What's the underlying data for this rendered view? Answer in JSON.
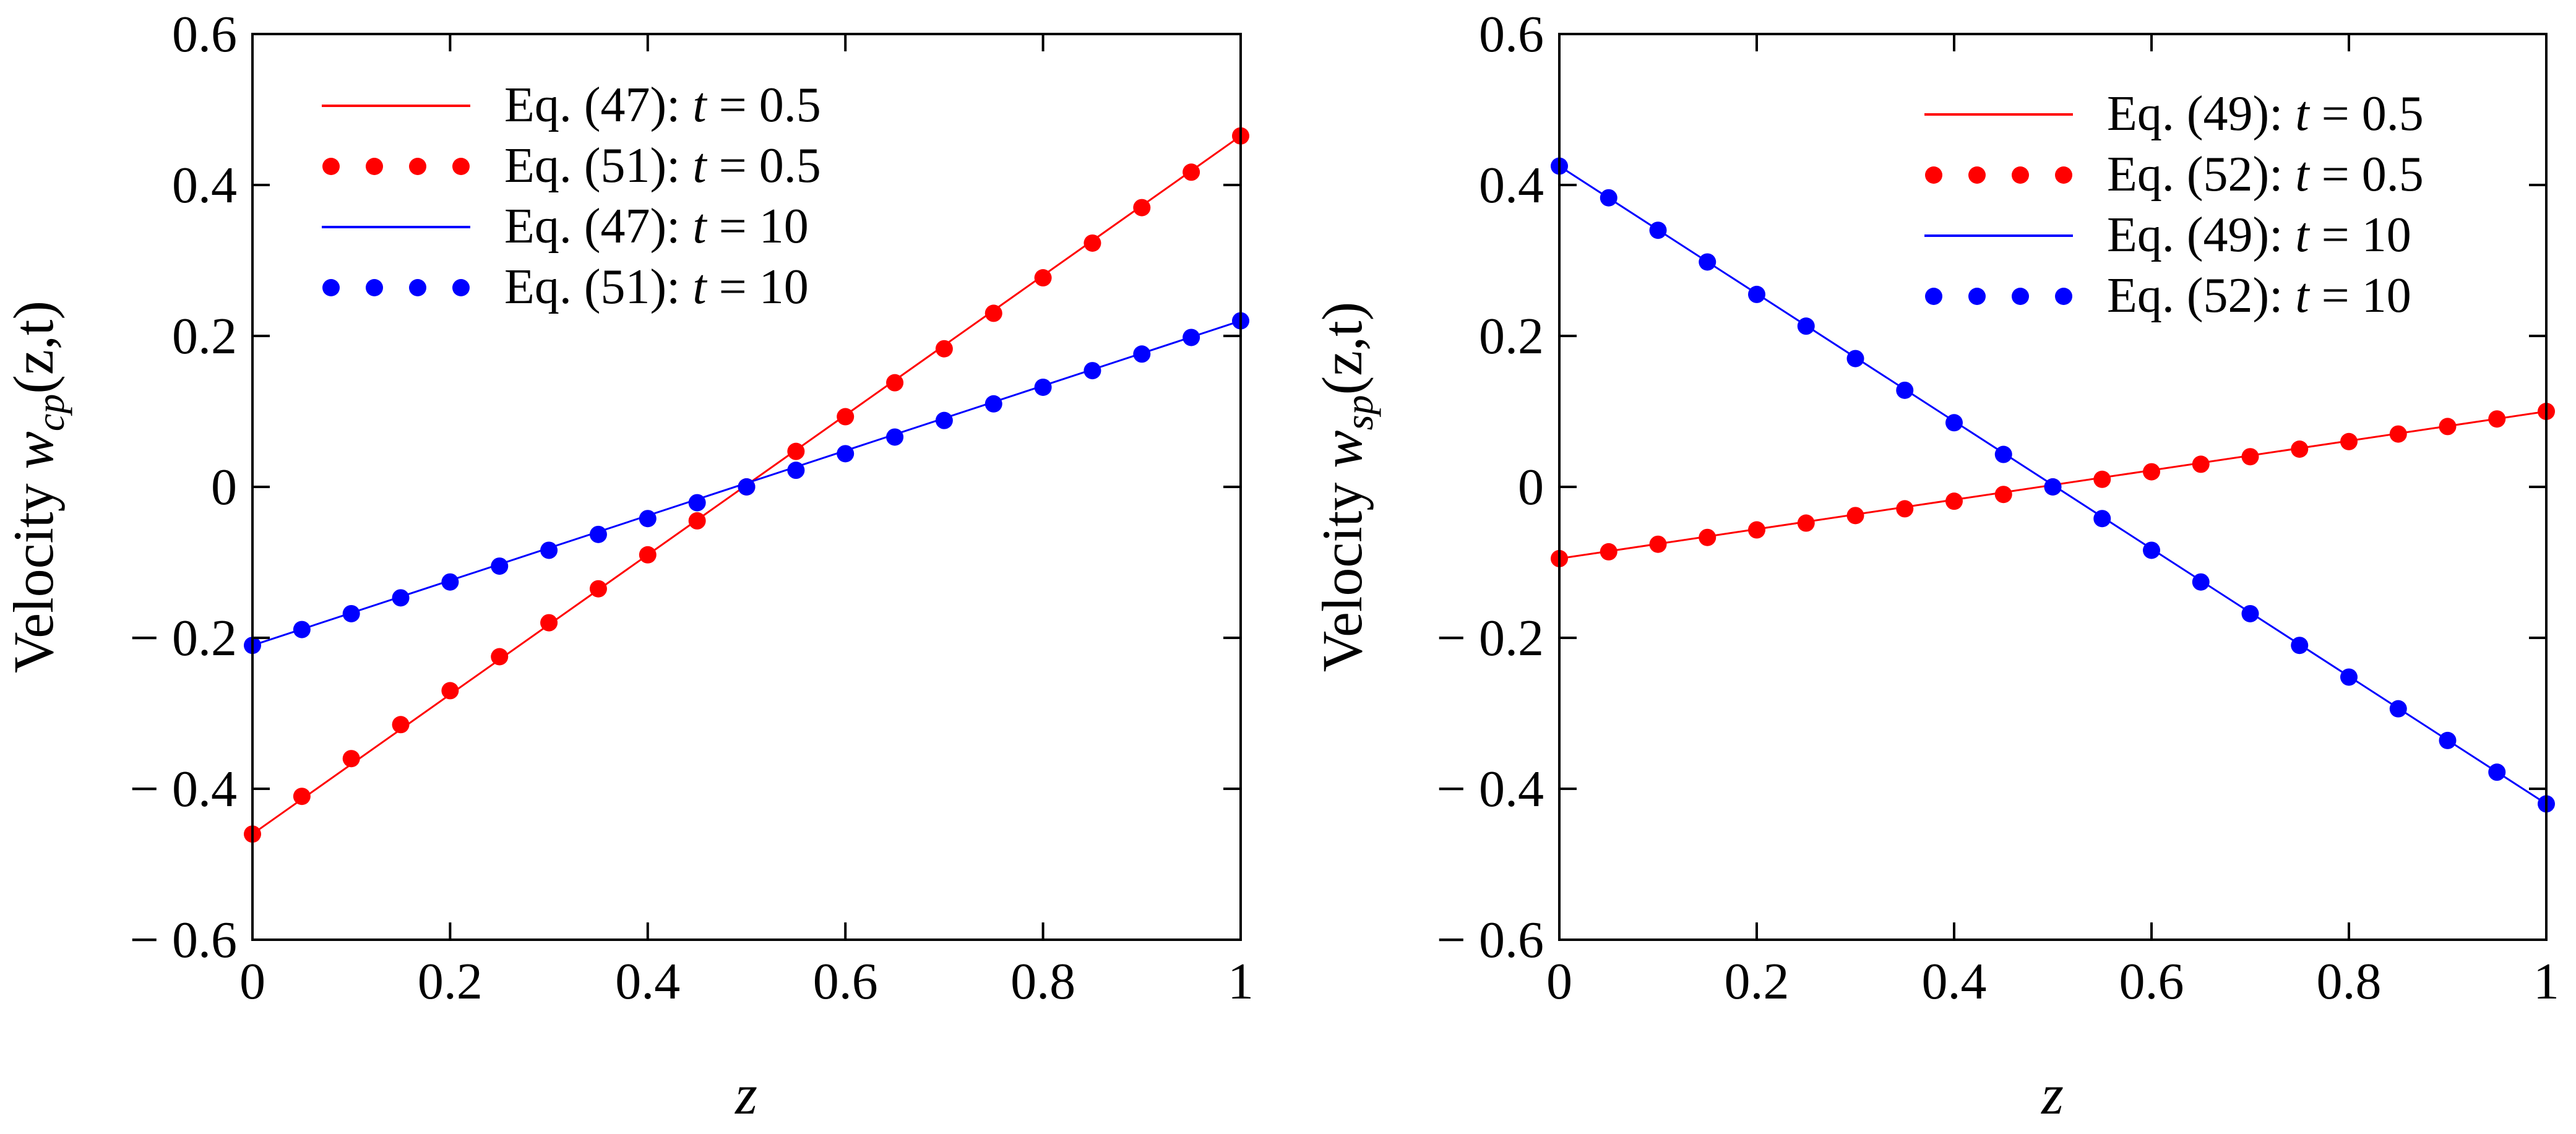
{
  "chart_data": [
    {
      "type": "line",
      "xlabel": "z",
      "ylabel_prefix": "Velocity ",
      "ylabel_var": "w",
      "ylabel_sub": "cp",
      "ylabel_args": "(z,t)",
      "xlim": [
        0,
        1
      ],
      "ylim": [
        -0.6,
        0.6
      ],
      "xticks": [
        "0",
        "0.2",
        "0.4",
        "0.6",
        "0.8",
        "1"
      ],
      "yticks": [
        "0.6",
        "0.4",
        "0.2",
        "0",
        "− 0.2",
        "− 0.4",
        "− 0.6"
      ],
      "legend_position": "top-left",
      "series": [
        {
          "name": "Eq. (47): ",
          "t_label": "t",
          "t_value": " = 0.5",
          "style": "line",
          "color": "#ff0000",
          "x": [
            0,
            1
          ],
          "y": [
            -0.46,
            0.465
          ]
        },
        {
          "name": "Eq. (51): ",
          "t_label": "t",
          "t_value": " = 0.5",
          "style": "dots",
          "color": "#ff0000",
          "x": [
            0,
            0.05,
            0.1,
            0.15,
            0.2,
            0.25,
            0.3,
            0.35,
            0.4,
            0.45,
            0.5,
            0.55,
            0.6,
            0.65,
            0.7,
            0.75,
            0.8,
            0.85,
            0.9,
            0.95,
            1
          ],
          "y": [
            -0.46,
            -0.41,
            -0.36,
            -0.315,
            -0.27,
            -0.225,
            -0.18,
            -0.135,
            -0.09,
            -0.045,
            0,
            0.047,
            0.093,
            0.138,
            0.183,
            0.23,
            0.277,
            0.323,
            0.37,
            0.417,
            0.465
          ]
        },
        {
          "name": "Eq. (47): ",
          "t_label": "t",
          "t_value": " = 10",
          "style": "line",
          "color": "#0000ff",
          "x": [
            0,
            1
          ],
          "y": [
            -0.21,
            0.22
          ]
        },
        {
          "name": "Eq. (51): ",
          "t_label": "t",
          "t_value": " = 10",
          "style": "dots",
          "color": "#0000ff",
          "x": [
            0,
            0.05,
            0.1,
            0.15,
            0.2,
            0.25,
            0.3,
            0.35,
            0.4,
            0.45,
            0.5,
            0.55,
            0.6,
            0.65,
            0.7,
            0.75,
            0.8,
            0.85,
            0.9,
            0.95,
            1
          ],
          "y": [
            -0.21,
            -0.189,
            -0.168,
            -0.147,
            -0.126,
            -0.105,
            -0.084,
            -0.063,
            -0.042,
            -0.021,
            0,
            0.022,
            0.044,
            0.066,
            0.088,
            0.11,
            0.132,
            0.154,
            0.176,
            0.198,
            0.22
          ]
        }
      ]
    },
    {
      "type": "line",
      "xlabel": "z",
      "ylabel_prefix": "Velocity ",
      "ylabel_var": "w",
      "ylabel_sub": "sp",
      "ylabel_args": "(z,t)",
      "xlim": [
        0,
        1
      ],
      "ylim": [
        -0.6,
        0.6
      ],
      "xticks": [
        "0",
        "0.2",
        "0.4",
        "0.6",
        "0.8",
        "1"
      ],
      "yticks": [
        "0.6",
        "0.4",
        "0.2",
        "0",
        "− 0.2",
        "− 0.4",
        "− 0.6"
      ],
      "legend_position": "top-right",
      "series": [
        {
          "name": "Eq. (49): ",
          "t_label": "t",
          "t_value": " = 0.5",
          "style": "line",
          "color": "#ff0000",
          "x": [
            0,
            1
          ],
          "y": [
            -0.095,
            0.1
          ]
        },
        {
          "name": "Eq. (52): ",
          "t_label": "t",
          "t_value": " = 0.5",
          "style": "dots",
          "color": "#ff0000",
          "x": [
            0,
            0.05,
            0.1,
            0.15,
            0.2,
            0.25,
            0.3,
            0.35,
            0.4,
            0.45,
            0.5,
            0.55,
            0.6,
            0.65,
            0.7,
            0.75,
            0.8,
            0.85,
            0.9,
            0.95,
            1
          ],
          "y": [
            -0.095,
            -0.086,
            -0.076,
            -0.067,
            -0.057,
            -0.048,
            -0.038,
            -0.029,
            -0.019,
            -0.01,
            0,
            0.01,
            0.02,
            0.03,
            0.04,
            0.05,
            0.06,
            0.07,
            0.08,
            0.09,
            0.1
          ]
        },
        {
          "name": "Eq. (49): ",
          "t_label": "t",
          "t_value": " = 10",
          "style": "line",
          "color": "#0000ff",
          "x": [
            0,
            1
          ],
          "y": [
            0.425,
            -0.42
          ]
        },
        {
          "name": "Eq. (52): ",
          "t_label": "t",
          "t_value": " = 10",
          "style": "dots",
          "color": "#0000ff",
          "x": [
            0,
            0.05,
            0.1,
            0.15,
            0.2,
            0.25,
            0.3,
            0.35,
            0.4,
            0.45,
            0.5,
            0.55,
            0.6,
            0.65,
            0.7,
            0.75,
            0.8,
            0.85,
            0.9,
            0.95,
            1
          ],
          "y": [
            0.425,
            0.383,
            0.34,
            0.298,
            0.255,
            0.213,
            0.17,
            0.128,
            0.085,
            0.043,
            0,
            -0.042,
            -0.084,
            -0.126,
            -0.168,
            -0.21,
            -0.252,
            -0.294,
            -0.336,
            -0.378,
            -0.42
          ]
        }
      ]
    }
  ]
}
